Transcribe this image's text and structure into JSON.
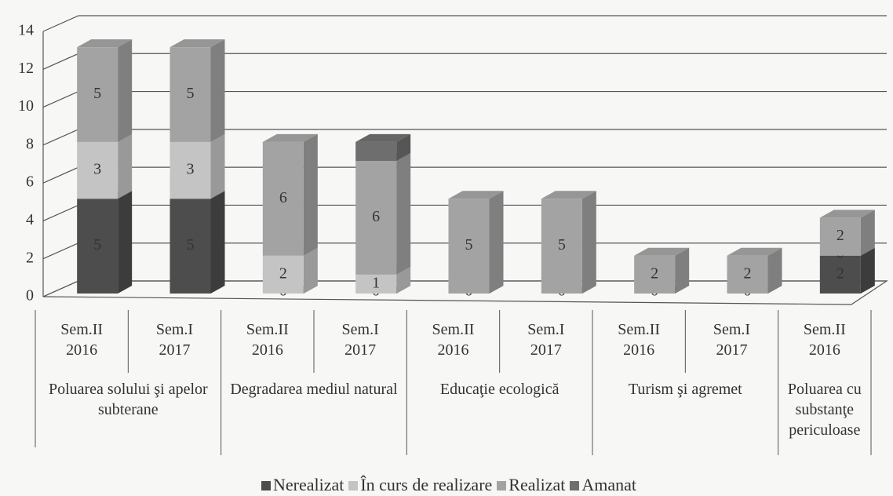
{
  "chart_data": {
    "type": "bar3d_stacked",
    "categories": [
      "Sem.II 2016",
      "Sem.I 2017",
      "Sem.II 2016",
      "Sem.I 2017",
      "Sem.II 2016",
      "Sem.I 2017",
      "Sem.II 2016",
      "Sem.I 2017",
      "Sem.II 2016"
    ],
    "groups": [
      {
        "name": "Poluarea solului şi apelor subterane",
        "span": 2
      },
      {
        "name": "Degradarea mediul natural",
        "span": 2
      },
      {
        "name": "Educaţie ecologică",
        "span": 2
      },
      {
        "name": "Turism şi agremet",
        "span": 2
      },
      {
        "name": "Poluarea cu substanţe periculoase",
        "span": 1
      }
    ],
    "series": [
      {
        "name": "Nerealizat",
        "color": "#4d4d4d",
        "values": [
          5,
          5,
          0,
          0,
          0,
          0,
          0,
          0,
          2
        ]
      },
      {
        "name": "În curs de realizare",
        "color": "#c4c4c4",
        "values": [
          3,
          3,
          2,
          1,
          null,
          null,
          null,
          null,
          0
        ]
      },
      {
        "name": "Realizat",
        "color": "#a3a3a3",
        "values": [
          5,
          5,
          6,
          6,
          5,
          5,
          2,
          2,
          2
        ]
      },
      {
        "name": "Amanat",
        "color": "#6e6e6e",
        "values": [
          null,
          null,
          null,
          1,
          null,
          null,
          null,
          null,
          null
        ],
        "value_labels": [
          null,
          null,
          null,
          null,
          null,
          null,
          null,
          null,
          null
        ]
      }
    ],
    "ylim": [
      0,
      14
    ],
    "yticks": [
      0,
      2,
      4,
      6,
      8,
      10,
      12,
      14
    ],
    "grid": true,
    "legend": "bottom"
  }
}
